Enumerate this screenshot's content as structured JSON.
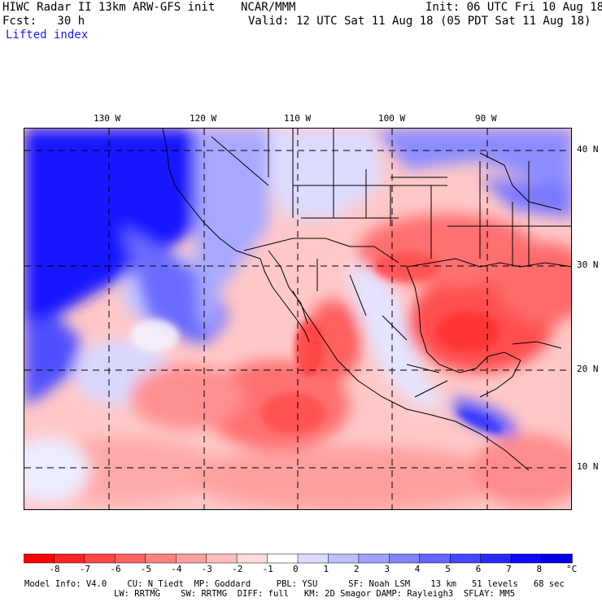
{
  "header": {
    "title_left": "HIWC Radar II 13km ARW-GFS init",
    "center": "NCAR/MMM",
    "init": "Init: 06 UTC Fri 10 Aug 18",
    "fcst": "Fcst:   30 h",
    "valid": "Valid: 12 UTC Sat 11 Aug 18 (05 PDT Sat 11 Aug 18)",
    "field": "Lifted index"
  },
  "map": {
    "lon_labels": [
      "130 W",
      "120 W",
      "110 W",
      "100 W",
      "90 W"
    ],
    "lat_labels": [
      "40 N",
      "30 N",
      "20 N",
      "10 N"
    ],
    "grid": "dashed"
  },
  "colorbar": {
    "ticks": [
      "-8",
      "-7",
      "-6",
      "-5",
      "-4",
      "-3",
      "-2",
      "-1",
      "0",
      "1",
      "2",
      "3",
      "4",
      "5",
      "6",
      "7",
      "8"
    ],
    "unit": "°C",
    "colors": [
      "#ff0000",
      "#ff2222",
      "#ff4444",
      "#ff6464",
      "#ff8282",
      "#ffa0a0",
      "#ffbebe",
      "#ffdcdc",
      "#ffffff",
      "#dcdcff",
      "#bebeff",
      "#a0a0ff",
      "#8282ff",
      "#6464ff",
      "#4646ff",
      "#2828ff",
      "#0a0aff",
      "#0000e6"
    ]
  },
  "footer": {
    "line1": "Model Info: V4.0    CU: N_Tiedt  MP: Goddard     PBL: YSU      SF: Noah LSM    13 km   51 levels   68 sec",
    "line2": "LW: RRTMG    SW: RRTMG  DIFF: full   KM: 2D Smagor DAMP: Rayleigh3  SFLAY: MM5"
  }
}
